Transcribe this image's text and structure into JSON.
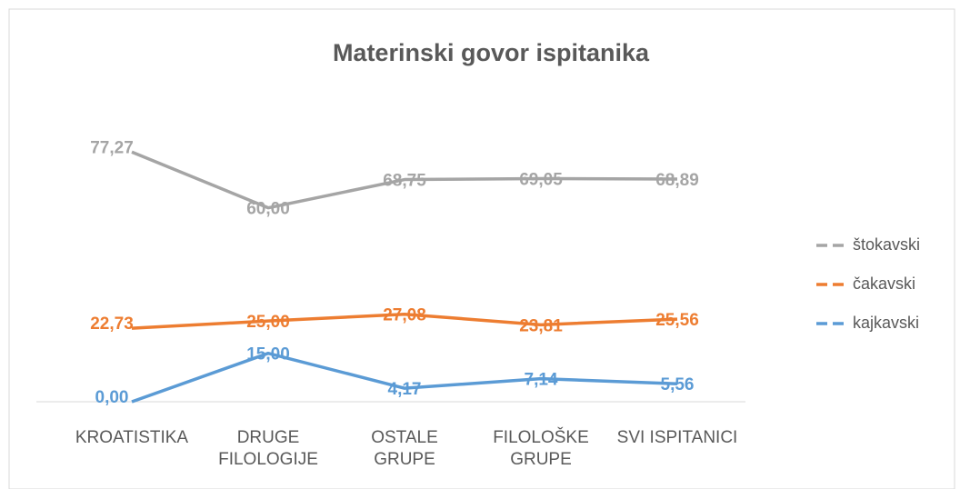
{
  "chart_data": {
    "type": "line",
    "title": "Materinski govor ispitanika",
    "categories": [
      "KROATISTIKA",
      "DRUGE\nFILOLOGIJE",
      "OSTALE\nGRUPE",
      "FILOLOŠKE\nGRUPE",
      "SVI ISPITANICI"
    ],
    "series": [
      {
        "name": "štokavski",
        "color": "#a5a5a5",
        "values": [
          77.27,
          60.0,
          68.75,
          69.05,
          68.89
        ],
        "value_labels": [
          "77,27",
          "60,00",
          "68,75",
          "69,05",
          "68,89"
        ]
      },
      {
        "name": "čakavski",
        "color": "#ed7d31",
        "values": [
          22.73,
          25.0,
          27.08,
          23.81,
          25.56
        ],
        "value_labels": [
          "22,73",
          "25,00",
          "27,08",
          "23,81",
          "25,56"
        ]
      },
      {
        "name": "kajkavski",
        "color": "#5b9bd5",
        "values": [
          0.0,
          15.0,
          4.17,
          7.14,
          5.56
        ],
        "value_labels": [
          "0,00",
          "15,00",
          "4,17",
          "7,14",
          "5,56"
        ]
      }
    ],
    "ylim": [
      0,
      90
    ],
    "legend": "right"
  }
}
